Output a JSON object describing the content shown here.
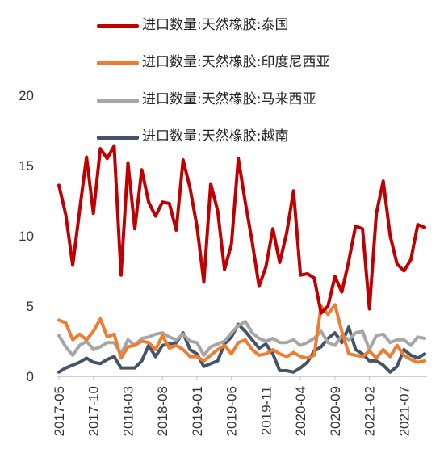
{
  "chart_data": {
    "type": "line",
    "title": "",
    "xlabel": "",
    "ylabel": "",
    "ylim": [
      0,
      20
    ],
    "yticks": [
      0,
      5,
      10,
      15,
      20
    ],
    "xtick_labels": [
      "2017-05",
      "2017-10",
      "2018-03",
      "2018-08",
      "2019-01",
      "2019-06",
      "2019-11",
      "2020-04",
      "2020-09",
      "2021-02",
      "2021-07"
    ],
    "x": [
      "2017-05",
      "2017-06",
      "2017-07",
      "2017-08",
      "2017-09",
      "2017-10",
      "2017-11",
      "2017-12",
      "2018-01",
      "2018-02",
      "2018-03",
      "2018-04",
      "2018-05",
      "2018-06",
      "2018-07",
      "2018-08",
      "2018-09",
      "2018-10",
      "2018-11",
      "2018-12",
      "2019-01",
      "2019-02",
      "2019-03",
      "2019-04",
      "2019-05",
      "2019-06",
      "2019-07",
      "2019-08",
      "2019-09",
      "2019-10",
      "2019-11",
      "2019-12",
      "2020-01",
      "2020-02",
      "2020-03",
      "2020-04",
      "2020-05",
      "2020-06",
      "2020-07",
      "2020-08",
      "2020-09",
      "2020-10",
      "2020-11",
      "2020-12",
      "2021-01",
      "2021-02",
      "2021-03",
      "2021-04",
      "2021-05",
      "2021-06",
      "2021-07",
      "2021-08",
      "2021-09",
      "2021-10"
    ],
    "legend_position": "top",
    "grid": false,
    "series": [
      {
        "name": "进口数量:天然橡胶:泰国",
        "color": "#c00000",
        "values": [
          13.6,
          11.5,
          7.9,
          11.8,
          15.6,
          11.6,
          16.2,
          15.5,
          16.4,
          7.2,
          15.2,
          10.5,
          14.7,
          12.4,
          11.4,
          12.4,
          12.3,
          10.4,
          15.4,
          13.4,
          10.7,
          6.7,
          13.7,
          11.8,
          7.6,
          9.4,
          15.5,
          12.4,
          9.6,
          6.4,
          7.8,
          10.5,
          8.1,
          10.2,
          13.2,
          7.2,
          7.3,
          7.0,
          4.5,
          5.0,
          7.1,
          6.0,
          8.2,
          10.7,
          10.5,
          4.8,
          11.6,
          13.9,
          10.0,
          8.0,
          7.5,
          8.3,
          10.8,
          10.6
        ]
      },
      {
        "name": "进口数量:天然橡胶:印度尼西亚",
        "color": "#ed7d31",
        "values": [
          4.0,
          3.8,
          2.6,
          3.0,
          2.6,
          3.2,
          4.1,
          2.8,
          3.0,
          1.3,
          2.1,
          2.2,
          2.5,
          2.4,
          1.9,
          2.9,
          2.0,
          2.2,
          1.9,
          1.4,
          1.4,
          1.1,
          1.5,
          1.9,
          2.2,
          1.6,
          2.4,
          2.6,
          1.9,
          1.5,
          1.6,
          1.9,
          1.6,
          1.4,
          1.7,
          1.4,
          1.3,
          1.5,
          5.0,
          4.4,
          5.1,
          3.2,
          1.6,
          1.5,
          1.4,
          1.8,
          1.3,
          1.9,
          1.4,
          2.2,
          1.5,
          1.2,
          1.0,
          1.1
        ]
      },
      {
        "name": "进口数量:天然橡胶:马来西亚",
        "color": "#a6a6a6",
        "values": [
          2.9,
          2.1,
          1.5,
          2.2,
          2.5,
          1.9,
          2.1,
          2.4,
          2.4,
          1.6,
          2.6,
          2.2,
          2.7,
          2.8,
          3.0,
          3.1,
          2.8,
          2.6,
          3.0,
          2.5,
          2.4,
          1.5,
          2.1,
          2.3,
          2.5,
          3.1,
          3.6,
          3.9,
          3.1,
          2.7,
          2.5,
          2.7,
          2.4,
          2.4,
          2.6,
          2.2,
          2.4,
          2.7,
          3.2,
          2.4,
          2.2,
          2.9,
          2.6,
          3.1,
          3.2,
          1.9,
          2.9,
          3.0,
          2.4,
          2.6,
          2.6,
          2.2,
          2.8,
          2.7
        ]
      },
      {
        "name": "进口数量:天然橡胶:越南",
        "color": "#44546a",
        "values": [
          0.3,
          0.6,
          0.8,
          1.0,
          1.3,
          1.0,
          0.9,
          1.2,
          1.4,
          0.6,
          0.6,
          0.6,
          1.1,
          2.2,
          1.4,
          2.2,
          2.3,
          2.4,
          3.1,
          1.9,
          1.6,
          0.7,
          0.9,
          1.1,
          2.3,
          2.8,
          3.7,
          3.2,
          2.6,
          2.0,
          2.3,
          1.6,
          0.4,
          0.4,
          0.3,
          0.6,
          1.0,
          1.8,
          2.1,
          2.7,
          3.1,
          2.4,
          3.5,
          1.9,
          1.6,
          1.1,
          1.1,
          0.8,
          0.3,
          0.7,
          1.9,
          1.5,
          1.3,
          1.6
        ]
      }
    ]
  }
}
